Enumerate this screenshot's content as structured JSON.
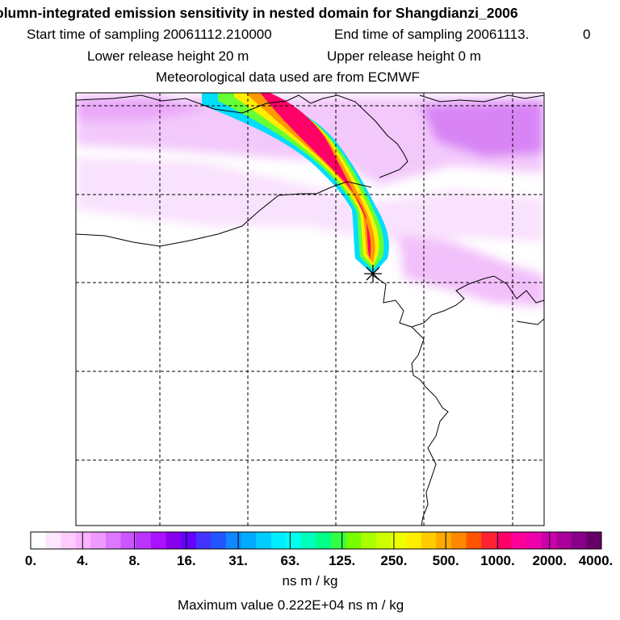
{
  "header": {
    "title": "olumn-integrated emission sensitivity in nested domain for Shangdianzi_2006",
    "start_label": "Start time of sampling 20061112.210000",
    "end_label": "End time of sampling 20061113.",
    "end_suffix": "0",
    "lower_label": "Lower release height   20 m",
    "upper_label": "Upper release height    0 m",
    "met_label": "Meteorological data used are from ECMWF"
  },
  "map": {
    "station": "Shangdianzi_2006",
    "marker": "release-site-star"
  },
  "colorbar": {
    "ticks": [
      "0.",
      "4.",
      "8.",
      "16.",
      "31.",
      "63.",
      "125.",
      "250.",
      "500.",
      "1000.",
      "2000.",
      "4000."
    ],
    "colors": [
      "#ffffff",
      "#ffe6ff",
      "#ffccff",
      "#f9b3ff",
      "#ee99ff",
      "#dd77ff",
      "#cc55ff",
      "#bb33ff",
      "#aa11ff",
      "#8800ee",
      "#6600ff",
      "#4433ff",
      "#2255ff",
      "#1188ff",
      "#00aaff",
      "#00ccff",
      "#00eeff",
      "#00ffee",
      "#00ffbb",
      "#00ff88",
      "#33ff44",
      "#77ff00",
      "#aaff00",
      "#ccff00",
      "#eeff00",
      "#ffee00",
      "#ffcc00",
      "#ffaa00",
      "#ff8800",
      "#ff5500",
      "#ff2233",
      "#ff0066",
      "#ff0099",
      "#ee00aa",
      "#cc00aa",
      "#aa0099",
      "#880088",
      "#660066"
    ],
    "units": "ns m / kg"
  },
  "footer": {
    "max_value": "Maximum value  0.222E+04 ns m / kg"
  }
}
